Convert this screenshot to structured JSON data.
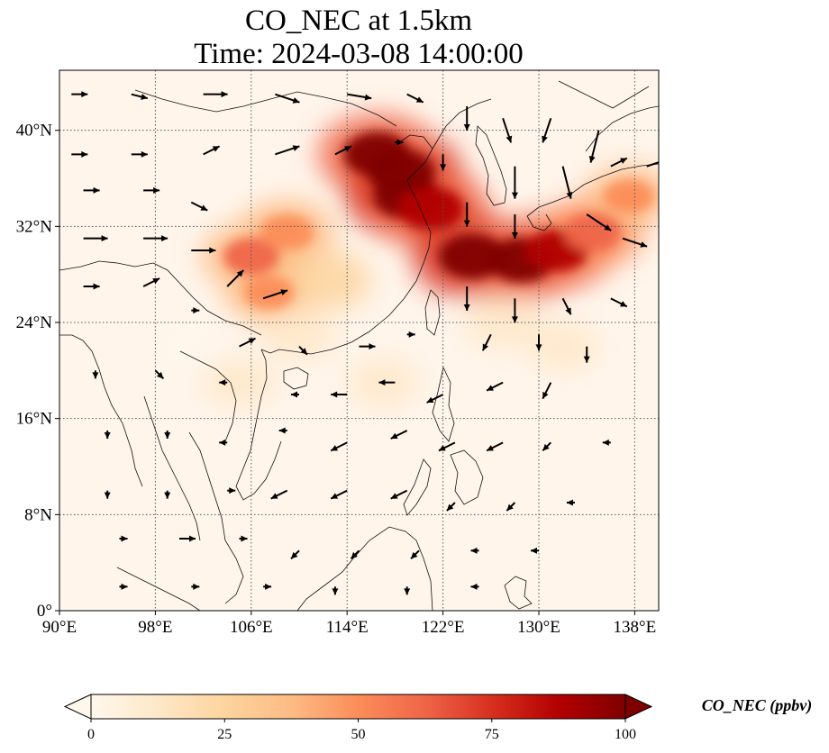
{
  "title": {
    "line1": "CO_NEC at 1.5km",
    "line2": "Time: 2024-03-08 14:00:00"
  },
  "map": {
    "lon_range": [
      90,
      140
    ],
    "lat_range": [
      0,
      45
    ],
    "lon_ticks": [
      90,
      98,
      106,
      114,
      122,
      130,
      138
    ],
    "lon_tick_labels": [
      "90°E",
      "98°E",
      "106°E",
      "114°E",
      "122°E",
      "130°E",
      "138°E"
    ],
    "lat_ticks": [
      0,
      8,
      16,
      24,
      32,
      40
    ],
    "lat_tick_labels": [
      "0°",
      "8°N",
      "16°N",
      "24°N",
      "32°N",
      "40°N"
    ],
    "gridlines": true,
    "background_color": "#fff5eb"
  },
  "colorbar": {
    "label": "CO_NEC (ppbv)",
    "min": 0,
    "max": 100,
    "ticks": [
      0,
      25,
      50,
      75,
      100
    ],
    "tick_labels": [
      "0",
      "25",
      "50",
      "75",
      "100"
    ],
    "extend": "both",
    "colormap": "OrRd",
    "colors": [
      "#fff7ec",
      "#fee8c8",
      "#fdd49e",
      "#fdbb84",
      "#fc8d59",
      "#ef6548",
      "#d7301f",
      "#b30000",
      "#7f0000"
    ]
  },
  "plumes": [
    {
      "lon": 118.5,
      "lat": 36.5,
      "value": 100
    },
    {
      "lon": 116.5,
      "lat": 38.0,
      "value": 95
    },
    {
      "lon": 119.0,
      "lat": 34.5,
      "value": 100
    },
    {
      "lon": 121.0,
      "lat": 33.5,
      "value": 92
    },
    {
      "lon": 124.5,
      "lat": 29.5,
      "value": 100
    },
    {
      "lon": 128.5,
      "lat": 29.2,
      "value": 98
    },
    {
      "lon": 131.5,
      "lat": 30.0,
      "value": 85
    },
    {
      "lon": 134.5,
      "lat": 31.5,
      "value": 65
    },
    {
      "lon": 137.5,
      "lat": 34.5,
      "value": 45
    },
    {
      "lon": 106.0,
      "lat": 29.5,
      "value": 62
    },
    {
      "lon": 109.0,
      "lat": 31.5,
      "value": 55
    },
    {
      "lon": 107.5,
      "lat": 26.5,
      "value": 45
    },
    {
      "lon": 112.5,
      "lat": 27.5,
      "value": 35
    },
    {
      "lon": 110.0,
      "lat": 23.0,
      "value": 22
    },
    {
      "lon": 105.0,
      "lat": 19.0,
      "value": 15
    },
    {
      "lon": 127.0,
      "lat": 24.0,
      "value": 25
    },
    {
      "lon": 132.0,
      "lat": 22.0,
      "value": 15
    },
    {
      "lon": 117.0,
      "lat": 19.0,
      "value": 12
    },
    {
      "lon": 101.0,
      "lat": 22.0,
      "value": 6
    }
  ],
  "wind_vectors": [
    {
      "lon": 91,
      "lat": 43,
      "u": 2,
      "v": 0
    },
    {
      "lon": 96,
      "lat": 43,
      "u": 2,
      "v": -0.5
    },
    {
      "lon": 102,
      "lat": 43,
      "u": 3,
      "v": 0
    },
    {
      "lon": 108,
      "lat": 43,
      "u": 3,
      "v": -1
    },
    {
      "lon": 114,
      "lat": 43,
      "u": 3,
      "v": -0.5
    },
    {
      "lon": 119,
      "lat": 43,
      "u": 2,
      "v": -1
    },
    {
      "lon": 124,
      "lat": 42,
      "u": 0,
      "v": -3
    },
    {
      "lon": 127,
      "lat": 41,
      "u": 1,
      "v": -3
    },
    {
      "lon": 131,
      "lat": 41,
      "u": -1,
      "v": -3
    },
    {
      "lon": 135,
      "lat": 40,
      "u": -1,
      "v": -4
    },
    {
      "lon": 91,
      "lat": 38,
      "u": 2,
      "v": 0
    },
    {
      "lon": 96,
      "lat": 38,
      "u": 2,
      "v": 0
    },
    {
      "lon": 102,
      "lat": 38,
      "u": 2,
      "v": 1
    },
    {
      "lon": 108,
      "lat": 38,
      "u": 3,
      "v": 1
    },
    {
      "lon": 113,
      "lat": 38,
      "u": 2,
      "v": 1
    },
    {
      "lon": 118,
      "lat": 39,
      "u": 1,
      "v": 0
    },
    {
      "lon": 122,
      "lat": 38,
      "u": 0,
      "v": -2
    },
    {
      "lon": 128,
      "lat": 37,
      "u": 0,
      "v": -4
    },
    {
      "lon": 132,
      "lat": 37,
      "u": 1,
      "v": -4
    },
    {
      "lon": 136,
      "lat": 37,
      "u": 2,
      "v": 1
    },
    {
      "lon": 139,
      "lat": 37,
      "u": 3,
      "v": 1
    },
    {
      "lon": 92,
      "lat": 35,
      "u": 2,
      "v": 0
    },
    {
      "lon": 97,
      "lat": 35,
      "u": 2,
      "v": 0
    },
    {
      "lon": 101,
      "lat": 34,
      "u": 2,
      "v": -1
    },
    {
      "lon": 124,
      "lat": 34,
      "u": 0,
      "v": -3
    },
    {
      "lon": 128,
      "lat": 33,
      "u": 0,
      "v": -3
    },
    {
      "lon": 134,
      "lat": 33,
      "u": 3,
      "v": -2
    },
    {
      "lon": 137,
      "lat": 31,
      "u": 3,
      "v": -1
    },
    {
      "lon": 92,
      "lat": 31,
      "u": 3,
      "v": 0
    },
    {
      "lon": 97,
      "lat": 31,
      "u": 3,
      "v": 0
    },
    {
      "lon": 101,
      "lat": 30,
      "u": 3,
      "v": 0
    },
    {
      "lon": 104,
      "lat": 27,
      "u": 2,
      "v": 2
    },
    {
      "lon": 107,
      "lat": 26,
      "u": 3,
      "v": 1
    },
    {
      "lon": 124,
      "lat": 27,
      "u": 0,
      "v": -3
    },
    {
      "lon": 128,
      "lat": 26,
      "u": 0,
      "v": -3
    },
    {
      "lon": 132,
      "lat": 26,
      "u": 1,
      "v": -2
    },
    {
      "lon": 136,
      "lat": 26,
      "u": 2,
      "v": -1
    },
    {
      "lon": 92,
      "lat": 27,
      "u": 2,
      "v": 0
    },
    {
      "lon": 97,
      "lat": 27,
      "u": 2,
      "v": 1
    },
    {
      "lon": 101,
      "lat": 25,
      "u": 1,
      "v": 0
    },
    {
      "lon": 105,
      "lat": 22,
      "u": 2,
      "v": 1
    },
    {
      "lon": 110,
      "lat": 22,
      "u": 1,
      "v": -1
    },
    {
      "lon": 115,
      "lat": 22,
      "u": 2,
      "v": 0
    },
    {
      "lon": 119,
      "lat": 23,
      "u": 1,
      "v": 0
    },
    {
      "lon": 126,
      "lat": 23,
      "u": -1,
      "v": -2
    },
    {
      "lon": 130,
      "lat": 23,
      "u": 0,
      "v": -2
    },
    {
      "lon": 134,
      "lat": 22,
      "u": 0,
      "v": -2
    },
    {
      "lon": 93,
      "lat": 20,
      "u": 0,
      "v": -1
    },
    {
      "lon": 98,
      "lat": 20,
      "u": 1,
      "v": -1
    },
    {
      "lon": 104,
      "lat": 19,
      "u": -1,
      "v": 0
    },
    {
      "lon": 110,
      "lat": 18,
      "u": -1,
      "v": 0
    },
    {
      "lon": 114,
      "lat": 18,
      "u": -2,
      "v": 0
    },
    {
      "lon": 118,
      "lat": 19,
      "u": -2,
      "v": 0
    },
    {
      "lon": 122,
      "lat": 18,
      "u": -2,
      "v": -1
    },
    {
      "lon": 127,
      "lat": 19,
      "u": -2,
      "v": -1
    },
    {
      "lon": 131,
      "lat": 19,
      "u": -1,
      "v": -2
    },
    {
      "lon": 94,
      "lat": 15,
      "u": 0,
      "v": -1
    },
    {
      "lon": 99,
      "lat": 15,
      "u": 0,
      "v": -1
    },
    {
      "lon": 104,
      "lat": 14,
      "u": -1,
      "v": 0
    },
    {
      "lon": 109,
      "lat": 15,
      "u": -1,
      "v": 0
    },
    {
      "lon": 114,
      "lat": 14,
      "u": -2,
      "v": -1
    },
    {
      "lon": 119,
      "lat": 15,
      "u": -2,
      "v": -1
    },
    {
      "lon": 123,
      "lat": 14,
      "u": -2,
      "v": -1
    },
    {
      "lon": 127,
      "lat": 14,
      "u": -2,
      "v": -1
    },
    {
      "lon": 131,
      "lat": 14,
      "u": -1,
      "v": -1
    },
    {
      "lon": 136,
      "lat": 14,
      "u": -1,
      "v": 0
    },
    {
      "lon": 94,
      "lat": 10,
      "u": 0,
      "v": -1
    },
    {
      "lon": 99,
      "lat": 10,
      "u": 0,
      "v": -1
    },
    {
      "lon": 104,
      "lat": 10,
      "u": 1,
      "v": 0
    },
    {
      "lon": 109,
      "lat": 10,
      "u": -2,
      "v": -1
    },
    {
      "lon": 114,
      "lat": 10,
      "u": -2,
      "v": -1
    },
    {
      "lon": 119,
      "lat": 10,
      "u": -2,
      "v": -1
    },
    {
      "lon": 123,
      "lat": 9,
      "u": -1,
      "v": -1
    },
    {
      "lon": 128,
      "lat": 9,
      "u": -1,
      "v": -1
    },
    {
      "lon": 133,
      "lat": 9,
      "u": -1,
      "v": 0
    },
    {
      "lon": 95,
      "lat": 6,
      "u": 1,
      "v": 0
    },
    {
      "lon": 100,
      "lat": 6,
      "u": 2,
      "v": 0
    },
    {
      "lon": 105,
      "lat": 6,
      "u": 1,
      "v": 0
    },
    {
      "lon": 110,
      "lat": 5,
      "u": -1,
      "v": -1
    },
    {
      "lon": 115,
      "lat": 5,
      "u": -1,
      "v": -1
    },
    {
      "lon": 120,
      "lat": 5,
      "u": -1,
      "v": -1
    },
    {
      "lon": 125,
      "lat": 5,
      "u": -1,
      "v": 0
    },
    {
      "lon": 130,
      "lat": 5,
      "u": -1,
      "v": 0
    },
    {
      "lon": 95,
      "lat": 2,
      "u": 1,
      "v": 0
    },
    {
      "lon": 101,
      "lat": 2,
      "u": 1,
      "v": 0
    },
    {
      "lon": 107,
      "lat": 2,
      "u": 1,
      "v": 0
    },
    {
      "lon": 113,
      "lat": 2,
      "u": 0,
      "v": -1
    },
    {
      "lon": 119,
      "lat": 2,
      "u": 0,
      "v": -1
    },
    {
      "lon": 125,
      "lat": 2,
      "u": -1,
      "v": 0
    }
  ]
}
